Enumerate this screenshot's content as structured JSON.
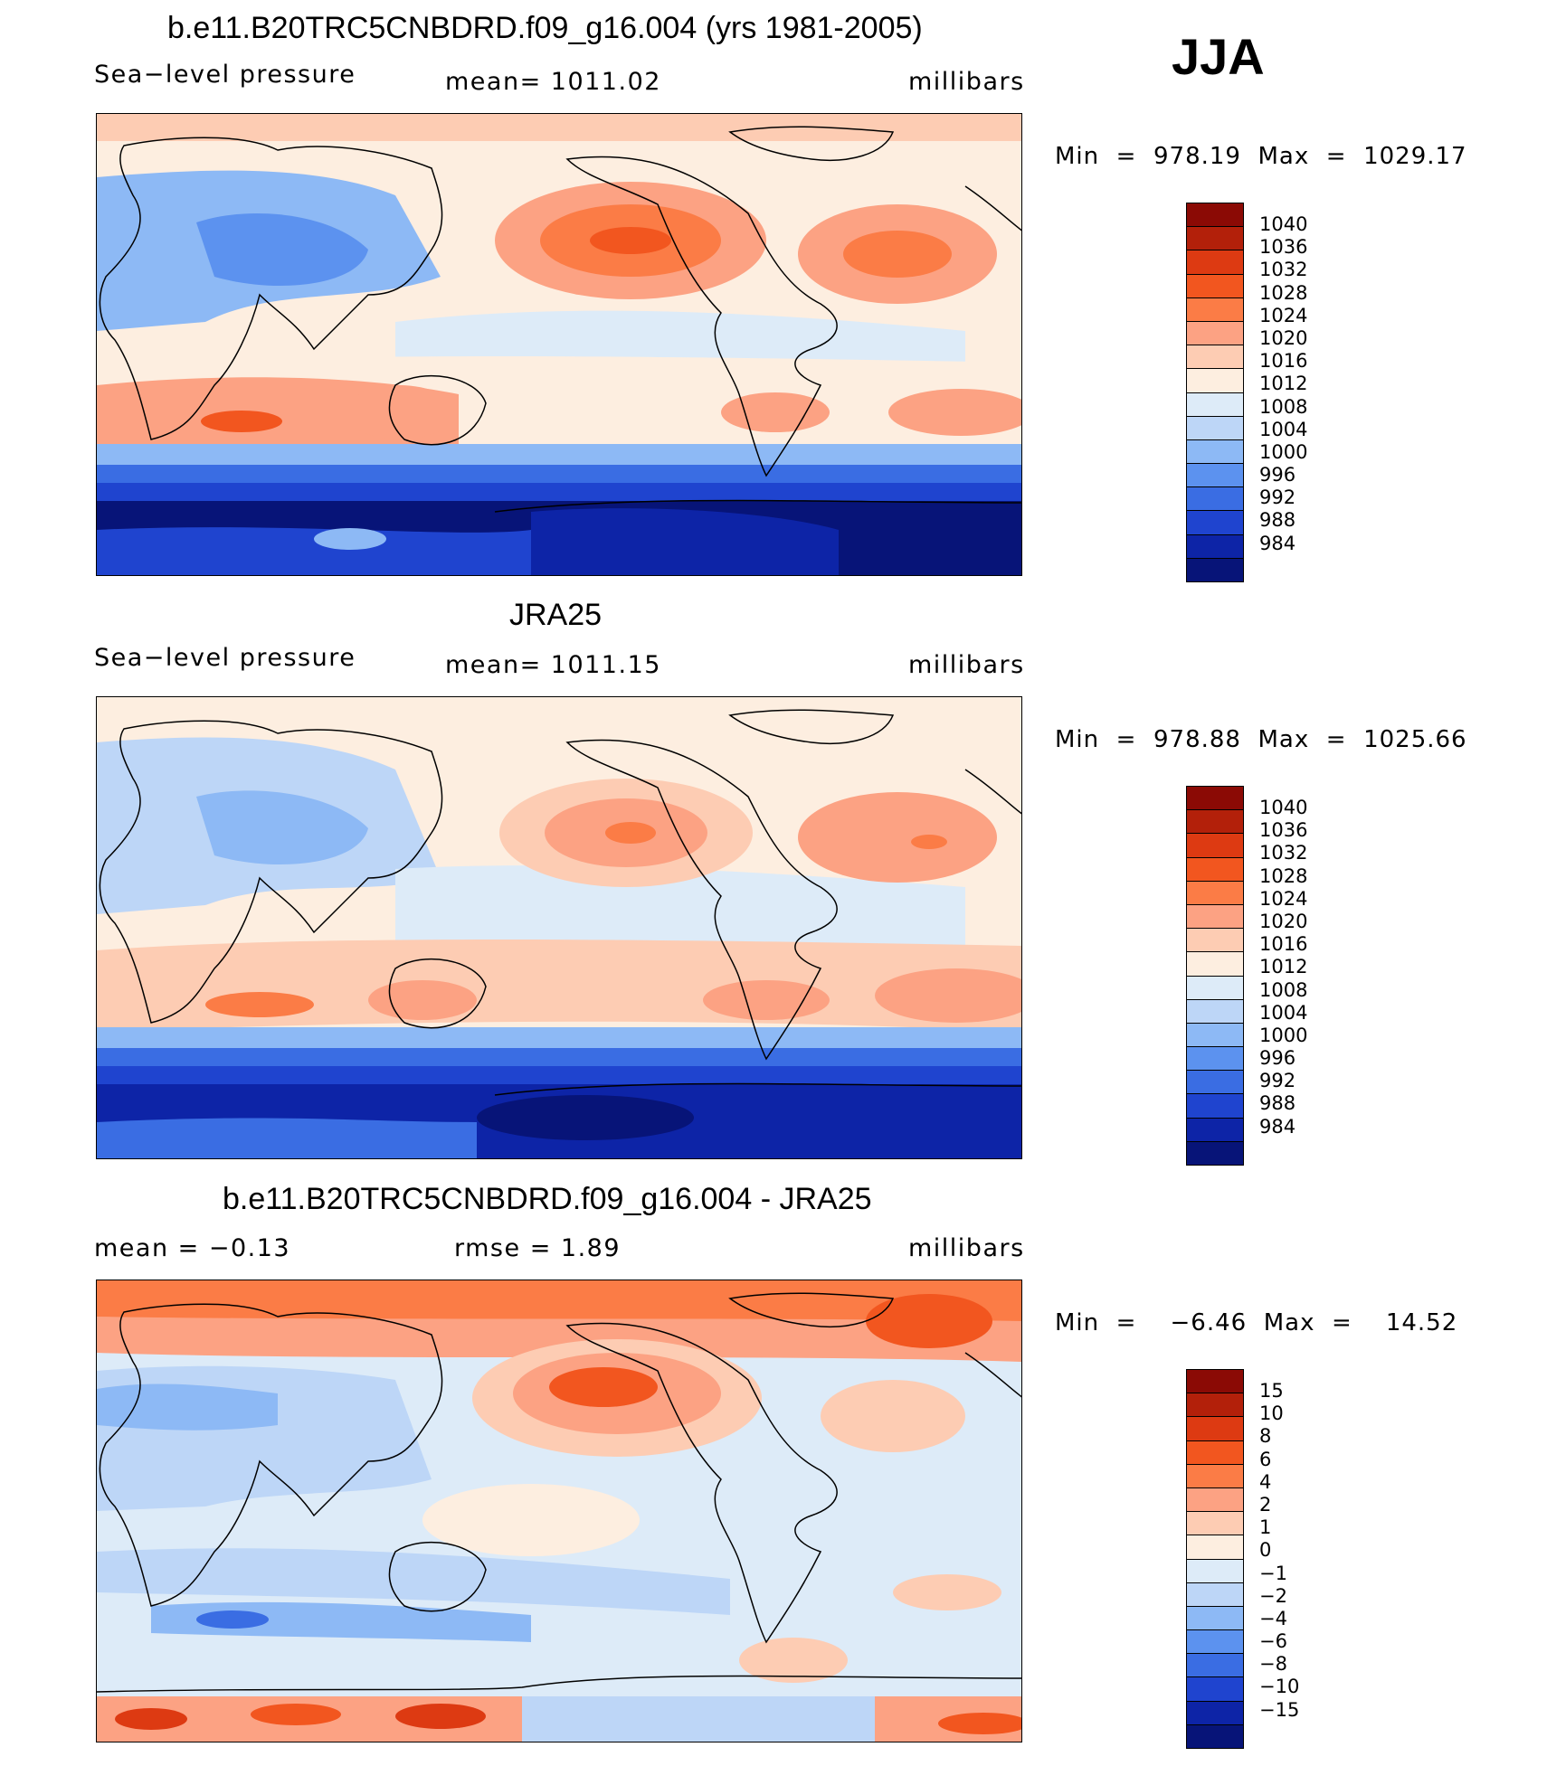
{
  "season": "JJA",
  "units_label": "millibars",
  "panels": [
    {
      "title": "b.e11.B20TRC5CNBDRD.f09_g16.004 (yrs 1981-2005)",
      "left_sub": "Sea−level pressure",
      "mid_sub": "mean=  1011.02",
      "right_sub": "millibars",
      "minmax": "Min  =  978.19  Max  =  1029.17",
      "colorbar_labels": [
        "1040",
        "1036",
        "1032",
        "1028",
        "1024",
        "1020",
        "1016",
        "1012",
        "1008",
        "1004",
        "1000",
        "996",
        "992",
        "988",
        "984"
      ]
    },
    {
      "title": "JRA25",
      "left_sub": "Sea−level pressure",
      "mid_sub": "mean=  1011.15",
      "right_sub": "millibars",
      "minmax": "Min  =  978.88  Max  =  1025.66",
      "colorbar_labels": [
        "1040",
        "1036",
        "1032",
        "1028",
        "1024",
        "1020",
        "1016",
        "1012",
        "1008",
        "1004",
        "1000",
        "996",
        "992",
        "988",
        "984"
      ]
    },
    {
      "title": "b.e11.B20TRC5CNBDRD.f09_g16.004 - JRA25",
      "left_sub": "mean  =    −0.13",
      "mid_sub": "rmse  =     1.89",
      "right_sub": "millibars",
      "minmax": "Min  =    −6.46  Max  =    14.52",
      "colorbar_labels": [
        "15",
        "10",
        "8",
        "6",
        "4",
        "2",
        "1",
        "0",
        "−1",
        "−2",
        "−4",
        "−6",
        "−8",
        "−10",
        "−15"
      ]
    }
  ],
  "colors": {
    "palette_top_to_bottom": [
      "#8b0a05",
      "#b3200a",
      "#dd3a12",
      "#f2561f",
      "#fb7c46",
      "#fca283",
      "#fdccb3",
      "#fdeee0",
      "#ddebf8",
      "#bdd6f7",
      "#8db9f5",
      "#5c92ef",
      "#3a6de3",
      "#1f44cf",
      "#0d24a7",
      "#071478"
    ],
    "coast": "#000000"
  }
}
